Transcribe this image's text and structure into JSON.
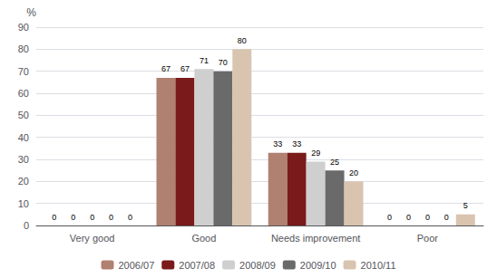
{
  "chart_data": {
    "type": "bar",
    "categories": [
      "Very good",
      "Good",
      "Needs improvement",
      "Poor"
    ],
    "series": [
      {
        "name": "2006/07",
        "color": "#b08070",
        "values": [
          0,
          67,
          33,
          0
        ]
      },
      {
        "name": "2007/08",
        "color": "#7a1a1a",
        "values": [
          0,
          67,
          33,
          0
        ]
      },
      {
        "name": "2008/09",
        "color": "#d0cfcf",
        "values": [
          0,
          71,
          29,
          0
        ]
      },
      {
        "name": "2009/10",
        "color": "#6a6a6a",
        "values": [
          0,
          70,
          25,
          0
        ]
      },
      {
        "name": "2010/11",
        "color": "#d9c4b0",
        "values": [
          0,
          80,
          20,
          5
        ]
      }
    ],
    "ylabel": "%",
    "ylim": [
      0,
      90
    ],
    "yticks": [
      0,
      10,
      20,
      30,
      40,
      50,
      60,
      70,
      80,
      90
    ],
    "grid": true,
    "legend": "bottom",
    "data_labels": true
  }
}
